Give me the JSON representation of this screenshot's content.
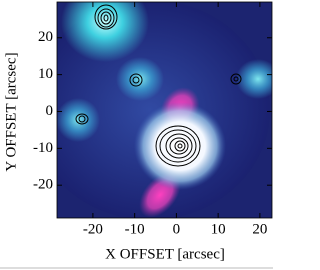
{
  "chart_data": {
    "type": "image",
    "x_label": "X OFFSET [arcsec]",
    "y_label": "Y OFFSET [arcsec]",
    "xlim": [
      -28.6,
      22.9
    ],
    "ylim": [
      -28.9,
      29.7
    ],
    "xticks": [
      -20,
      -10,
      0,
      10,
      20
    ],
    "yticks": [
      -20,
      -10,
      0,
      10,
      20
    ]
  }
}
